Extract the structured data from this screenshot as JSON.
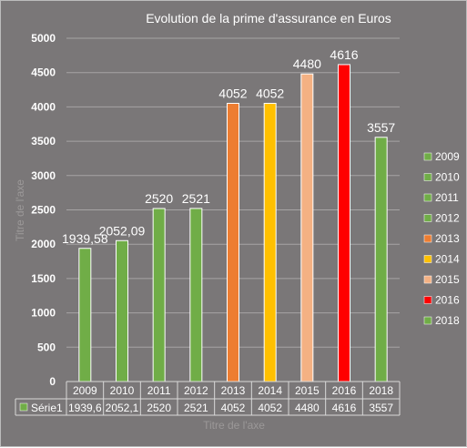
{
  "chart_data": {
    "type": "bar",
    "title": "Evolution de la prime d'assurance en Euros",
    "xlabel": "Titre de l'axe",
    "ylabel": "Titre de l'axe",
    "ylim": [
      0,
      5000
    ],
    "yticks": [
      "0",
      "500",
      "1000",
      "1500",
      "2000",
      "2500",
      "3000",
      "3500",
      "4000",
      "4500",
      "5000"
    ],
    "grid": true,
    "legend_position": "right",
    "categories": [
      "2009",
      "2010",
      "2011",
      "2012",
      "2013",
      "2014",
      "2015",
      "2016",
      "2018"
    ],
    "values": [
      1939.58,
      2052.09,
      2520,
      2521,
      4052,
      4052,
      4480,
      4616,
      3557
    ],
    "data_labels": [
      "1939,58",
      "2052,09",
      "2520",
      "2521",
      "4052",
      "4052",
      "4480",
      "4616",
      "3557"
    ],
    "colors": [
      "#70ad47",
      "#70ad47",
      "#70ad47",
      "#70ad47",
      "#ed7d31",
      "#ffc000",
      "#f4b183",
      "#ff0000",
      "#70ad47"
    ],
    "data_table": {
      "series_name": "Série1",
      "values": [
        "1939,6",
        "2052,1",
        "2520",
        "2521",
        "4052",
        "4052",
        "4480",
        "4616",
        "3557"
      ]
    }
  }
}
